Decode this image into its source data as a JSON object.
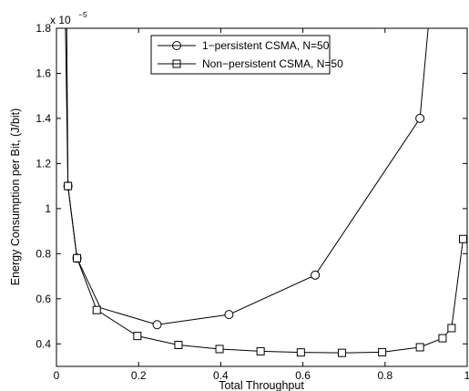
{
  "chart_data": {
    "type": "line",
    "xlabel": "Total Throughput",
    "ylabel": "Energy Consumption per Bit, (J/bit)",
    "y_scale_prefix": "x 10",
    "y_scale_exponent": "−5",
    "xlim": [
      0,
      1
    ],
    "ylim": [
      0.3,
      1.8
    ],
    "x_ticks": [
      0,
      0.2,
      0.4,
      0.6,
      0.8,
      1
    ],
    "x_tick_labels": [
      "0",
      "0.2",
      "0.4",
      "0.6",
      "0.8",
      "1"
    ],
    "y_ticks": [
      0.4,
      0.6,
      0.8,
      1.0,
      1.2,
      1.4,
      1.6,
      1.8
    ],
    "y_tick_labels": [
      "0.4",
      "0.6",
      "0.8",
      "1",
      "1.2",
      "1.4",
      "1.6",
      "1.8"
    ],
    "grid": false,
    "legend_position": "top-center",
    "series": [
      {
        "name": "1−persistent CSMA, N=50",
        "marker": "circle",
        "line": [
          [
            0.025,
            1.8
          ],
          [
            0.028,
            1.1
          ],
          [
            0.05,
            0.78
          ],
          [
            0.107,
            0.56
          ],
          [
            0.245,
            0.485
          ],
          [
            0.42,
            0.53
          ],
          [
            0.63,
            0.705
          ],
          [
            0.885,
            1.4
          ],
          [
            0.905,
            1.8
          ]
        ],
        "points": [
          [
            0.028,
            1.1
          ],
          [
            0.05,
            0.78
          ],
          [
            0.245,
            0.485
          ],
          [
            0.42,
            0.53
          ],
          [
            0.63,
            0.705
          ],
          [
            0.885,
            1.4
          ]
        ]
      },
      {
        "name": "Non−persistent CSMA, N=50",
        "marker": "square",
        "line": [
          [
            0.022,
            1.8
          ],
          [
            0.028,
            1.1
          ],
          [
            0.05,
            0.78
          ],
          [
            0.098,
            0.55
          ],
          [
            0.197,
            0.435
          ],
          [
            0.297,
            0.395
          ],
          [
            0.397,
            0.377
          ],
          [
            0.497,
            0.367
          ],
          [
            0.595,
            0.362
          ],
          [
            0.695,
            0.36
          ],
          [
            0.793,
            0.363
          ],
          [
            0.885,
            0.385
          ],
          [
            0.94,
            0.425
          ],
          [
            0.962,
            0.47
          ],
          [
            0.99,
            0.865
          ]
        ],
        "points": [
          [
            0.028,
            1.1
          ],
          [
            0.05,
            0.78
          ],
          [
            0.098,
            0.55
          ],
          [
            0.197,
            0.435
          ],
          [
            0.297,
            0.395
          ],
          [
            0.397,
            0.377
          ],
          [
            0.497,
            0.367
          ],
          [
            0.595,
            0.362
          ],
          [
            0.695,
            0.36
          ],
          [
            0.793,
            0.363
          ],
          [
            0.885,
            0.385
          ],
          [
            0.94,
            0.425
          ],
          [
            0.962,
            0.47
          ],
          [
            0.99,
            0.865
          ]
        ]
      }
    ]
  }
}
